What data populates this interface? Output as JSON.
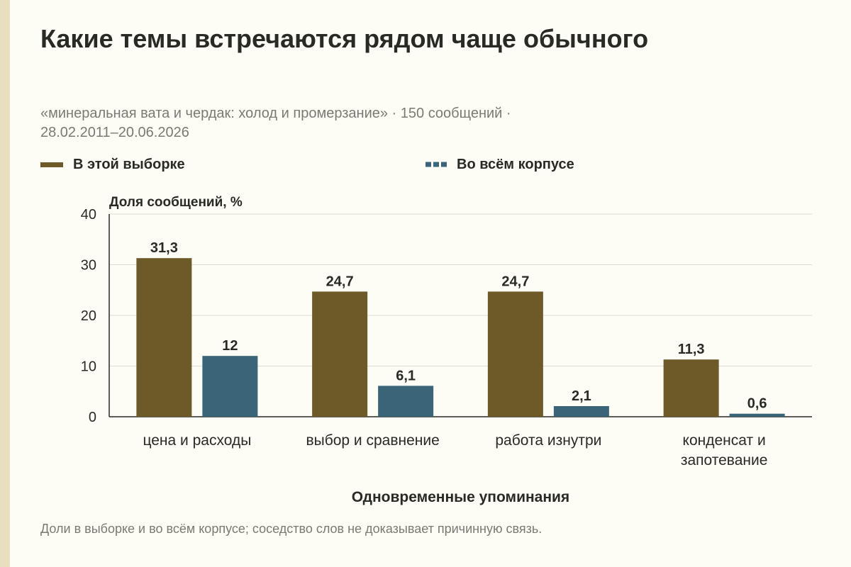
{
  "title": "Какие темы встречаются рядом чаще обычного",
  "subtitle_line1": "«минеральная вата и чердак: холод и промерзание» · 150 сообщений ·",
  "subtitle_line2": "28.02.2011–20.06.2026",
  "footnote": "Доли в выборке и во всём корпусе; соседство слов не доказывает причинную связь.",
  "colors": {
    "sample": "#6e5a28",
    "corpus": "#3a6478",
    "grid": "#dcdcd4",
    "axis": "#2a2a24"
  },
  "chart_data": {
    "type": "bar",
    "ylabel": "Доля сообщений, %",
    "xlabel": "Одновременные упоминания",
    "ylim": [
      0,
      40
    ],
    "yticks": [
      0,
      10,
      20,
      30,
      40
    ],
    "grid": true,
    "legend_position": "top-left",
    "categories": [
      [
        "цена и расходы"
      ],
      [
        "выбор и сравнение"
      ],
      [
        "работа изнутри"
      ],
      [
        "конденсат и",
        "запотевание"
      ]
    ],
    "series": [
      {
        "name": "В этой выборке",
        "values": [
          31.3,
          24.7,
          24.7,
          11.3
        ],
        "labels": [
          "31,3",
          "24,7",
          "24,7",
          "11,3"
        ]
      },
      {
        "name": "Во всём корпусе",
        "values": [
          12,
          6.1,
          2.1,
          0.6
        ],
        "labels": [
          "12",
          "6,1",
          "2,1",
          "0,6"
        ]
      }
    ]
  }
}
